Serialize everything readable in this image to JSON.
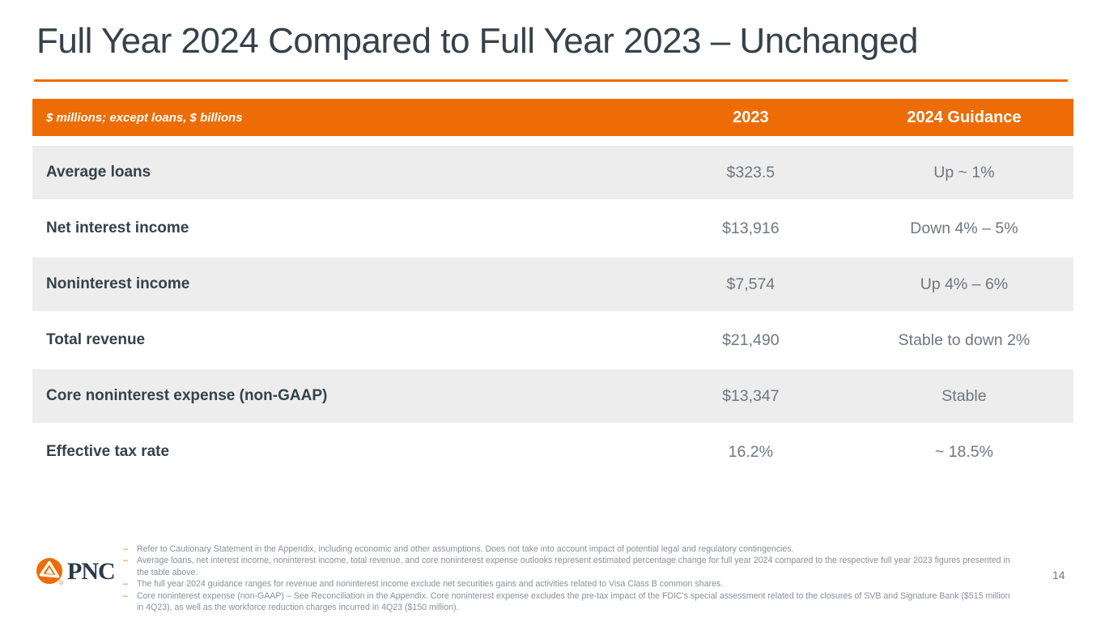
{
  "slide": {
    "title": "Full Year 2024 Compared to Full Year 2023 – Unchanged",
    "page_number": "14"
  },
  "table": {
    "unit_note": "$ millions; except loans, $ billions",
    "columns": [
      "2023",
      "2024 Guidance"
    ],
    "rows": [
      {
        "label": "Average loans",
        "y2023": "$323.5",
        "guidance": "Up ~ 1%"
      },
      {
        "label": "Net interest income",
        "y2023": "$13,916",
        "guidance": "Down 4% – 5%"
      },
      {
        "label": "Noninterest income",
        "y2023": "$7,574",
        "guidance": "Up 4% – 6%"
      },
      {
        "label": "Total revenue",
        "y2023": "$21,490",
        "guidance": "Stable to down 2%"
      },
      {
        "label": "Core noninterest expense (non-GAAP)",
        "y2023": "$13,347",
        "guidance": "Stable"
      },
      {
        "label": "Effective tax rate",
        "y2023": "16.2%",
        "guidance": "~ 18.5%"
      }
    ]
  },
  "footnotes": [
    "Refer to Cautionary Statement in the Appendix, including economic and other assumptions. Does not take into account impact of potential legal and regulatory contingencies.",
    "Average loans, net interest income, noninterest income, total revenue, and core noninterest expense outlooks represent estimated percentage change for full year 2024 compared to the respective full year 2023 figures presented in the table above.",
    "The full year 2024 guidance ranges for revenue and noninterest income exclude net securities gains and activities related to Visa Class B common shares.",
    "Core noninterest expense (non-GAAP) – See Reconciliation in the Appendix. Core noninterest expense excludes the pre-tax impact of the FDIC's special assessment related to the closures of SVB and Signature Bank ($515 million in 4Q23), as well as the workforce reduction charges incurred in 4Q23 ($150 million)."
  ],
  "logo": {
    "text": "PNC",
    "registered_mark": "®"
  },
  "colors": {
    "orange": "#ED6C05",
    "dark": "#36414B",
    "value_gray": "#6E7780",
    "row_gray": "#EDEDEE",
    "footnote_gray": "#87919A"
  }
}
